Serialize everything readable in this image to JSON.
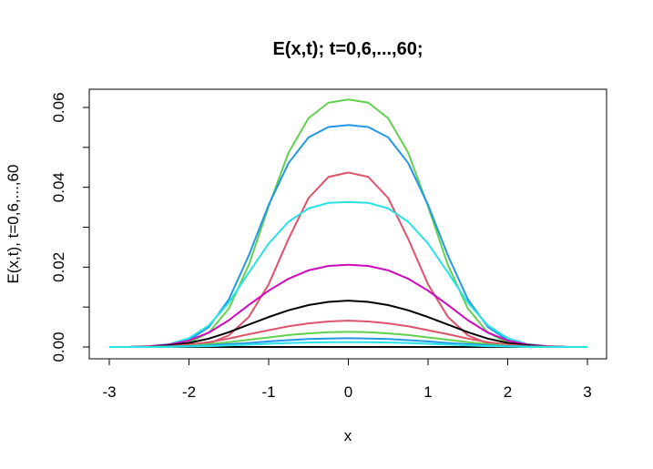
{
  "chart_data": {
    "type": "line",
    "title": "E(x,t); t=0,6,...,60;",
    "xlabel": "x",
    "ylabel": "E(x,t), t=0,6,...,60",
    "xlim": [
      -3,
      3
    ],
    "ylim": [
      0,
      0.06
    ],
    "x_ticks": [
      -3,
      -2,
      -1,
      0,
      1,
      2,
      3
    ],
    "x_tick_labels": [
      "-3",
      "-2",
      "-1",
      "0",
      "1",
      "2",
      "3"
    ],
    "y_ticks": [
      0,
      0.02,
      0.04,
      0.06
    ],
    "y_tick_labels": [
      "0.00",
      "0.02",
      "0.04",
      "0.06"
    ],
    "grid": false,
    "legend": "none",
    "x": [
      -3,
      -2.75,
      -2.5,
      -2.25,
      -2,
      -1.75,
      -1.5,
      -1.25,
      -1,
      -0.75,
      -0.5,
      -0.25,
      0,
      0.25,
      0.5,
      0.75,
      1,
      1.25,
      1.5,
      1.75,
      2,
      2.25,
      2.5,
      2.75,
      3
    ],
    "series": [
      {
        "color": "#000000",
        "values": [
          0,
          0,
          0,
          0,
          0,
          0,
          0,
          0,
          0,
          0,
          0,
          0,
          0,
          0,
          0,
          0,
          0,
          0,
          0,
          0,
          0,
          0,
          0,
          0,
          0
        ]
      },
      {
        "color": "#df536b",
        "values": [
          0,
          0,
          0,
          0,
          0.0002,
          0.0009,
          0.0029,
          0.0075,
          0.0157,
          0.0271,
          0.0373,
          0.0426,
          0.0437,
          0.0426,
          0.0373,
          0.0271,
          0.0157,
          0.0075,
          0.0029,
          0.0009,
          0.0002,
          0,
          0,
          0,
          0
        ]
      },
      {
        "color": "#61d04f",
        "values": [
          0,
          0,
          0,
          0.0003,
          0.0011,
          0.0036,
          0.0096,
          0.0205,
          0.0352,
          0.0487,
          0.0573,
          0.0612,
          0.062,
          0.0612,
          0.0573,
          0.0487,
          0.0352,
          0.0205,
          0.0096,
          0.0036,
          0.0011,
          0.0003,
          0,
          0,
          0
        ]
      },
      {
        "color": "#2297e6",
        "values": [
          0,
          0,
          0.0001,
          0.0005,
          0.0017,
          0.005,
          0.0119,
          0.0229,
          0.0356,
          0.0461,
          0.0525,
          0.0551,
          0.0556,
          0.0551,
          0.0525,
          0.0461,
          0.0356,
          0.0229,
          0.0119,
          0.005,
          0.0017,
          0.0005,
          0.0001,
          0,
          0
        ]
      },
      {
        "color": "#28e2e5",
        "values": [
          0,
          0,
          0.0002,
          0.0007,
          0.0022,
          0.0054,
          0.0111,
          0.0186,
          0.0259,
          0.0314,
          0.0347,
          0.0361,
          0.0363,
          0.0361,
          0.0347,
          0.0314,
          0.0259,
          0.0186,
          0.0111,
          0.0054,
          0.0022,
          0.0007,
          0.0002,
          0,
          0
        ]
      },
      {
        "color": "#cd0bbc",
        "values": [
          0,
          0,
          0.0002,
          0.0006,
          0.0016,
          0.0036,
          0.0067,
          0.0105,
          0.0141,
          0.0171,
          0.0192,
          0.0203,
          0.0206,
          0.0203,
          0.0192,
          0.0171,
          0.0141,
          0.0105,
          0.0067,
          0.0036,
          0.0016,
          0.0006,
          0.0002,
          0,
          0
        ]
      },
      {
        "color": "#000000",
        "values": [
          0,
          0,
          0.0001,
          0.0004,
          0.001,
          0.0021,
          0.0037,
          0.0056,
          0.0075,
          0.0092,
          0.0105,
          0.0113,
          0.0116,
          0.0113,
          0.0105,
          0.0092,
          0.0075,
          0.0056,
          0.0037,
          0.0021,
          0.001,
          0.0004,
          0.0001,
          0,
          0
        ]
      },
      {
        "color": "#df536b",
        "values": [
          0,
          0,
          0.0001,
          0.0002,
          0.0006,
          0.0012,
          0.0021,
          0.0032,
          0.0042,
          0.0052,
          0.0059,
          0.0064,
          0.0066,
          0.0064,
          0.0059,
          0.0052,
          0.0042,
          0.0032,
          0.0021,
          0.0012,
          0.0006,
          0.0002,
          0.0001,
          0,
          0
        ]
      },
      {
        "color": "#61d04f",
        "values": [
          0,
          0,
          0,
          0.0001,
          0.0003,
          0.0007,
          0.0012,
          0.0018,
          0.0024,
          0.003,
          0.0034,
          0.0037,
          0.0038,
          0.0037,
          0.0034,
          0.003,
          0.0024,
          0.0018,
          0.0012,
          0.0007,
          0.0003,
          0.0001,
          0,
          0,
          0
        ]
      },
      {
        "color": "#2297e6",
        "values": [
          0,
          0,
          0,
          0.0001,
          0.0002,
          0.0004,
          0.0007,
          0.001,
          0.0014,
          0.0017,
          0.002,
          0.0021,
          0.0022,
          0.0021,
          0.002,
          0.0017,
          0.0014,
          0.001,
          0.0007,
          0.0004,
          0.0002,
          0.0001,
          0,
          0,
          0
        ]
      },
      {
        "color": "#28e2e5",
        "values": [
          0,
          0,
          0,
          0,
          0.0001,
          0.0002,
          0.0004,
          0.0006,
          0.0008,
          0.001,
          0.0011,
          0.0012,
          0.0012,
          0.0012,
          0.0011,
          0.001,
          0.0008,
          0.0006,
          0.0004,
          0.0002,
          0.0001,
          0,
          0,
          0,
          0
        ]
      }
    ]
  }
}
